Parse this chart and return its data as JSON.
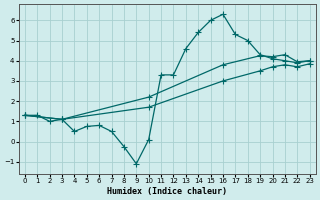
{
  "xlabel": "Humidex (Indice chaleur)",
  "bg_color": "#d0ecec",
  "grid_color": "#a8d0d0",
  "line_color": "#006868",
  "xlim": [
    -0.5,
    23.5
  ],
  "ylim": [
    -1.6,
    6.8
  ],
  "xticks": [
    0,
    1,
    2,
    3,
    4,
    5,
    6,
    7,
    8,
    9,
    10,
    11,
    12,
    13,
    14,
    15,
    16,
    17,
    18,
    19,
    20,
    21,
    22,
    23
  ],
  "yticks": [
    -1,
    0,
    1,
    2,
    3,
    4,
    5,
    6
  ],
  "line1_x": [
    0,
    1,
    2,
    3,
    4,
    5,
    6,
    7,
    8,
    9,
    10,
    11,
    12,
    13,
    14,
    15,
    16,
    17,
    18,
    19,
    20,
    21,
    22,
    23
  ],
  "line1_y": [
    1.3,
    1.3,
    1.0,
    1.1,
    0.5,
    0.75,
    0.8,
    0.5,
    -0.25,
    -1.1,
    0.1,
    3.3,
    3.3,
    4.6,
    5.4,
    6.0,
    6.3,
    5.3,
    5.0,
    4.3,
    4.1,
    4.0,
    3.9,
    4.0
  ],
  "line2_x": [
    0,
    3,
    10,
    16,
    19,
    20,
    21,
    22,
    23
  ],
  "line2_y": [
    1.3,
    1.1,
    2.2,
    3.8,
    4.25,
    4.2,
    4.3,
    3.95,
    4.0
  ],
  "line3_x": [
    0,
    3,
    10,
    16,
    19,
    20,
    21,
    22,
    23
  ],
  "line3_y": [
    1.3,
    1.1,
    1.7,
    3.0,
    3.5,
    3.7,
    3.8,
    3.7,
    3.85
  ]
}
